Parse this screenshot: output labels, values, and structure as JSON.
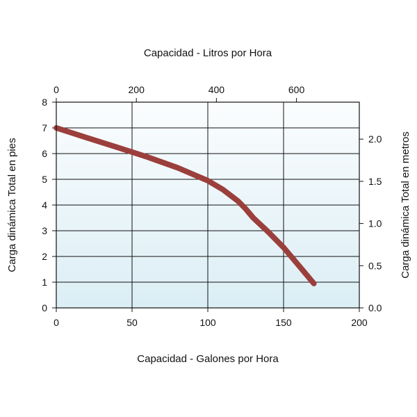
{
  "chart_data": {
    "type": "line",
    "title": "",
    "x_top_label": "Capacidad - Litros por Hora",
    "x_bottom_label": "Capacidad - Galones por Hora",
    "y_left_label": "Carga dinámica Total en pies",
    "y_right_label": "Carga dinámica Total en metros",
    "x_bottom_range": [
      0,
      200
    ],
    "x_bottom_ticks": [
      "0",
      "50",
      "100",
      "150",
      "200"
    ],
    "x_top_range_lph": [
      0,
      757
    ],
    "x_top_ticks": [
      "0",
      "200",
      "400",
      "600"
    ],
    "y_left_range": [
      0,
      8
    ],
    "y_left_ticks": [
      "0",
      "1",
      "2",
      "3",
      "4",
      "5",
      "6",
      "7",
      "8"
    ],
    "y_right_range_m": [
      0,
      2.438
    ],
    "y_right_ticks": [
      "0.0",
      "0.5",
      "1.0",
      "1.5",
      "2.0"
    ],
    "grid": true,
    "series": [
      {
        "x": [
          0,
          20,
          40,
          60,
          80,
          100,
          110,
          120,
          125,
          130,
          140,
          150,
          160,
          170
        ],
        "y": [
          7.0,
          6.62,
          6.25,
          5.87,
          5.45,
          4.95,
          4.6,
          4.15,
          3.85,
          3.5,
          2.95,
          2.35,
          1.65,
          0.95
        ]
      }
    ],
    "colors": {
      "line": "#9b3f3c",
      "grid": "#111111",
      "background_top": "#fbfdfe",
      "background_bottom": "#dbeef5"
    }
  }
}
